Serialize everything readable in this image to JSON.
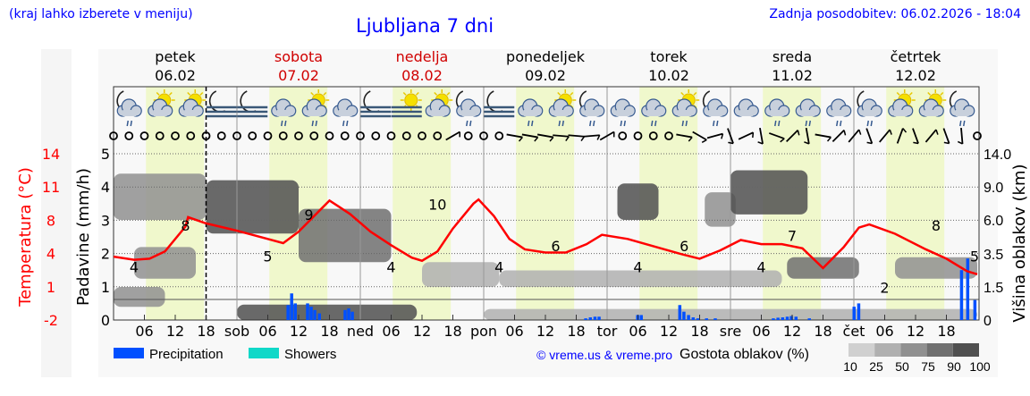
{
  "header": {
    "region_hint": "(kraj lahko izberete v meniju)",
    "title": "Ljubljana 7 dni",
    "updated": "Zadnja posodobitev: 06.02.2026 - 18:04"
  },
  "days": [
    {
      "name": "petek",
      "date": "06.02",
      "weekend": false,
      "abbr": ""
    },
    {
      "name": "sobota",
      "date": "07.02",
      "weekend": true,
      "abbr": "sob"
    },
    {
      "name": "nedelja",
      "date": "08.02",
      "weekend": true,
      "abbr": "ned"
    },
    {
      "name": "ponedeljek",
      "date": "09.02",
      "weekend": false,
      "abbr": "pon"
    },
    {
      "name": "torek",
      "date": "10.02",
      "weekend": false,
      "abbr": "tor"
    },
    {
      "name": "sreda",
      "date": "11.02",
      "weekend": false,
      "abbr": "sre"
    },
    {
      "name": "četrtek",
      "date": "12.02",
      "weekend": false,
      "abbr": "čet"
    }
  ],
  "colors": {
    "weekend": "#d00000",
    "temperature": "#ff0000",
    "precipitation": "#0050ff",
    "showers": "#10d8c8",
    "daylight": "#f0f8cc",
    "link": "#0000ff"
  },
  "weather_icons": [
    "moon-cloud-rain",
    "sun-cloud",
    "sun-cloud",
    "moon-fog",
    "moon-fog",
    "cloud-rain",
    "sun-cloud-rain",
    "cloud-rain",
    "moon-fog",
    "sun-fog",
    "sun-cloud",
    "moon-cloud-rain",
    "moon-fog",
    "cloud-rain",
    "sun-cloud-rain",
    "moon-cloud-rain",
    "cloud-rain",
    "cloud-rain",
    "sun-cloud-rain",
    "moon-cloud-rain",
    "cloud",
    "cloud-rain",
    "cloud-rain",
    "cloud-rain",
    "moon-cloud-rain",
    "sun-cloud",
    "sun-cloud",
    "moon-cloud-rain"
  ],
  "wind_directions": [
    null,
    null,
    null,
    null,
    null,
    null,
    null,
    null,
    null,
    null,
    null,
    null,
    null,
    null,
    null,
    null,
    null,
    null,
    null,
    null,
    null,
    null,
    60,
    null,
    null,
    null,
    100,
    100,
    100,
    95,
    95,
    85,
    60,
    null,
    null,
    null,
    null,
    100,
    120,
    75,
    160,
    65,
    170,
    110,
    45,
    170,
    100,
    45,
    40,
    160,
    40,
    20,
    160,
    40,
    160,
    175,
    null
  ],
  "chart_data": {
    "type": "line",
    "x_unit": "hours from 06.02 00:00",
    "now_hour": 18,
    "x_tick_labels": [
      "06",
      "12",
      "18"
    ],
    "left_axis": {
      "label": "Padavine (mm/h)",
      "ticks": [
        "0",
        "1",
        "2",
        "3",
        "4",
        "5"
      ],
      "range": [
        0,
        5
      ]
    },
    "temp_axis": {
      "label": "Temperatura (°C)",
      "ticks": [
        "-2",
        "1",
        "4",
        "8",
        "11",
        "14"
      ],
      "range": [
        -2,
        14
      ]
    },
    "right_axis": {
      "label": "Višina oblakov (km)",
      "ticks": [
        "0",
        "1.5",
        "3.5",
        "6.0",
        "9.0",
        "14.0"
      ]
    },
    "daylight_hours": [
      6.3,
      17.6
    ],
    "temperature": [
      [
        0,
        4.1
      ],
      [
        4,
        3.8
      ],
      [
        7,
        3.9
      ],
      [
        10,
        4.6
      ],
      [
        14,
        7.0
      ],
      [
        14.5,
        7.9
      ],
      [
        18,
        7.3
      ],
      [
        24,
        6.6
      ],
      [
        30,
        5.8
      ],
      [
        33,
        5.4
      ],
      [
        36,
        6.5
      ],
      [
        40,
        8.5
      ],
      [
        42,
        9.5
      ],
      [
        46,
        8.2
      ],
      [
        50,
        6.5
      ],
      [
        54,
        5.2
      ],
      [
        58,
        4.0
      ],
      [
        60,
        3.7
      ],
      [
        63,
        4.6
      ],
      [
        66,
        6.8
      ],
      [
        70,
        9.2
      ],
      [
        71,
        9.6
      ],
      [
        74,
        8.0
      ],
      [
        77,
        5.8
      ],
      [
        80,
        4.8
      ],
      [
        84,
        4.5
      ],
      [
        88,
        4.5
      ],
      [
        92,
        5.3
      ],
      [
        95,
        6.2
      ],
      [
        100,
        5.8
      ],
      [
        105,
        5.1
      ],
      [
        110,
        4.4
      ],
      [
        114,
        3.9
      ],
      [
        118,
        4.7
      ],
      [
        122,
        5.7
      ],
      [
        126,
        5.3
      ],
      [
        130,
        5.3
      ],
      [
        134,
        4.9
      ],
      [
        138,
        3.0
      ],
      [
        142,
        5.0
      ],
      [
        145,
        6.9
      ],
      [
        147,
        7.2
      ],
      [
        152,
        6.3
      ],
      [
        158,
        4.8
      ],
      [
        162,
        3.9
      ],
      [
        166,
        2.7
      ],
      [
        168,
        2.4
      ]
    ],
    "temperature_extra": [
      [
        172,
        4.6
      ]
    ],
    "temperature_labels": [
      [
        4,
        4
      ],
      [
        14,
        8
      ],
      [
        30,
        5
      ],
      [
        38,
        9
      ],
      [
        54,
        4
      ],
      [
        63,
        10
      ],
      [
        75,
        4
      ],
      [
        86,
        6
      ],
      [
        102,
        4
      ],
      [
        111,
        6
      ],
      [
        126,
        4
      ],
      [
        132,
        7
      ],
      [
        150,
        2
      ],
      [
        160,
        8
      ],
      [
        168,
        5
      ]
    ],
    "precipitation": [
      [
        33.9,
        0.45
      ],
      [
        34.6,
        0.8
      ],
      [
        35.3,
        0.5
      ],
      [
        37.7,
        0.5
      ],
      [
        38.4,
        0.4
      ],
      [
        39.1,
        0.3
      ],
      [
        40,
        0.2
      ],
      [
        45,
        0.3
      ],
      [
        45.7,
        0.35
      ],
      [
        46.4,
        0.25
      ],
      [
        91.8,
        0.05
      ],
      [
        92.7,
        0.08
      ],
      [
        93.6,
        0.1
      ],
      [
        94.4,
        0.1
      ],
      [
        101.9,
        0.15
      ],
      [
        102.6,
        0.15
      ],
      [
        110.1,
        0.45
      ],
      [
        110.9,
        0.25
      ],
      [
        111.8,
        0.15
      ],
      [
        112.7,
        0.08
      ],
      [
        113.6,
        0.05
      ],
      [
        115.3,
        0.05
      ],
      [
        117,
        0.05
      ],
      [
        128.3,
        0.05
      ],
      [
        129.2,
        0.07
      ],
      [
        130.1,
        0.08
      ],
      [
        131,
        0.1
      ],
      [
        131.8,
        0.12
      ],
      [
        132.7,
        0.1
      ],
      [
        135.3,
        0.05
      ],
      [
        144,
        0.4
      ],
      [
        144.9,
        0.5
      ],
      [
        164.9,
        1.5
      ],
      [
        166.1,
        1.85
      ],
      [
        167.5,
        0.6
      ]
    ],
    "cloud_density": [
      [
        0,
        18,
        6,
        11,
        50
      ],
      [
        18,
        36,
        5,
        10,
        90
      ],
      [
        4,
        16,
        2,
        4,
        50
      ],
      [
        36,
        54,
        3,
        7,
        75
      ],
      [
        24,
        59,
        0,
        0.7,
        90
      ],
      [
        60,
        75,
        1.5,
        3,
        25
      ],
      [
        75,
        130,
        1.5,
        2.5,
        25
      ],
      [
        98,
        106,
        6,
        9.5,
        90
      ],
      [
        115,
        121,
        5.5,
        8.5,
        50
      ],
      [
        120,
        135,
        6.5,
        11.5,
        90
      ],
      [
        131,
        145,
        2,
        3.3,
        75
      ],
      [
        152,
        168,
        2,
        3.3,
        50
      ],
      [
        72,
        168,
        0,
        0.5,
        25
      ],
      [
        0,
        10,
        0.6,
        1.5,
        50
      ]
    ],
    "legend": [
      {
        "name": "Precipitation"
      },
      {
        "name": "Showers"
      }
    ],
    "density_scale": {
      "title": "Gostota oblakov (%)",
      "levels": [
        "10",
        "25",
        "50",
        "75",
        "90",
        "100"
      ],
      "colors": [
        "#d0d0d0",
        "#b0b0b0",
        "#909090",
        "#707070",
        "#505050"
      ]
    }
  },
  "credit": "© vreme.us & vreme.pro"
}
